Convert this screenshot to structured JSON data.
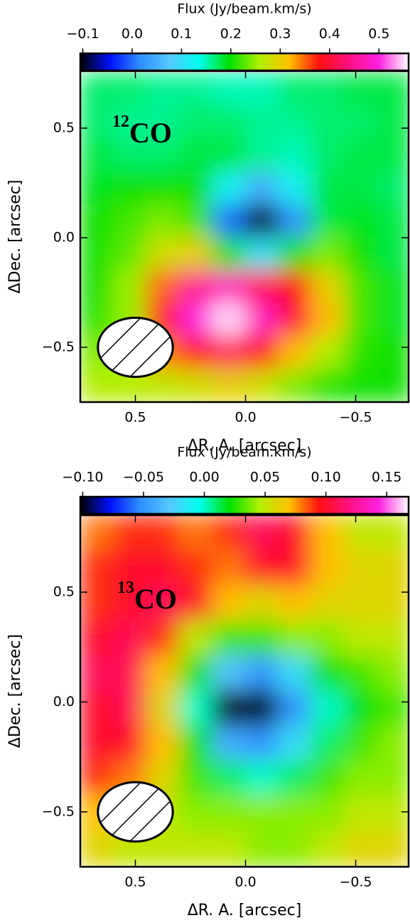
{
  "chart_data": [
    {
      "type": "heatmap",
      "colorbar_label": "Flux (Jy/beam.km/s)",
      "xlabel": "ΔR. A. [arcsec]",
      "ylabel": "ΔDec. [arcsec]",
      "annotation": {
        "mass": "12",
        "molecule": "CO"
      },
      "x": [
        0.675,
        0.525,
        0.375,
        0.225,
        0.075,
        -0.075,
        -0.225,
        -0.375,
        -0.525,
        -0.675
      ],
      "y": [
        0.675,
        0.525,
        0.375,
        0.225,
        0.075,
        -0.075,
        -0.225,
        -0.375,
        -0.525,
        -0.675
      ],
      "values": [
        [
          0.17,
          0.17,
          0.16,
          0.16,
          0.15,
          0.15,
          0.17,
          0.17,
          0.18,
          0.18
        ],
        [
          0.17,
          0.16,
          0.16,
          0.17,
          0.17,
          0.16,
          0.16,
          0.17,
          0.17,
          0.18
        ],
        [
          0.18,
          0.17,
          0.17,
          0.18,
          0.18,
          0.16,
          0.15,
          0.17,
          0.18,
          0.18
        ],
        [
          0.19,
          0.2,
          0.2,
          0.2,
          0.12,
          0.05,
          0.12,
          0.18,
          0.18,
          0.17
        ],
        [
          0.2,
          0.22,
          0.24,
          0.22,
          0.0,
          -0.1,
          0.02,
          0.18,
          0.19,
          0.18
        ],
        [
          0.2,
          0.23,
          0.28,
          0.3,
          0.2,
          0.1,
          0.2,
          0.24,
          0.2,
          0.18
        ],
        [
          0.2,
          0.25,
          0.35,
          0.45,
          0.48,
          0.42,
          0.38,
          0.3,
          0.22,
          0.19
        ],
        [
          0.21,
          0.25,
          0.38,
          0.5,
          0.55,
          0.48,
          0.4,
          0.32,
          0.22,
          0.19
        ],
        [
          0.24,
          0.26,
          0.34,
          0.38,
          0.42,
          0.38,
          0.32,
          0.26,
          0.21,
          0.2
        ],
        [
          0.26,
          0.26,
          0.27,
          0.28,
          0.3,
          0.28,
          0.24,
          0.21,
          0.2,
          0.2
        ]
      ],
      "clim": [
        -0.105,
        0.56
      ],
      "cticks": [
        {
          "value": -0.1,
          "label": "−0.1"
        },
        {
          "value": 0,
          "label": "0.0"
        },
        0.1,
        0.2,
        0.3,
        0.4,
        0.5
      ],
      "xlim": [
        0.75,
        -0.74
      ],
      "ylim": [
        -0.75,
        0.76
      ],
      "xticks": [
        0.5,
        {
          "value": 0,
          "label": "0.0"
        },
        {
          "value": -0.5,
          "label": "−0.5"
        }
      ],
      "yticks": [
        0.5,
        {
          "value": 0,
          "label": "0.0"
        },
        {
          "value": -0.5,
          "label": "−0.5"
        }
      ],
      "colormap": [
        "#000000",
        "#0010ff",
        "#2f8fff",
        "#55c8ff",
        "#00ffee",
        "#00e000",
        "#b0f000",
        "#ffc000",
        "#ff1010",
        "#ff1080",
        "#ff20e0",
        "#ffffff"
      ],
      "beam": {
        "x": 0.5,
        "y": -0.5,
        "width": 0.34,
        "height": 0.27
      }
    },
    {
      "type": "heatmap",
      "colorbar_label": "Flux (Jy/beam.km/s)",
      "xlabel": "ΔR. A. [arcsec]",
      "ylabel": "ΔDec. [arcsec]",
      "annotation": {
        "mass": "13",
        "molecule": "CO"
      },
      "x": [
        0.675,
        0.525,
        0.375,
        0.225,
        0.075,
        -0.075,
        -0.225,
        -0.375,
        -0.525,
        -0.675
      ],
      "y": [
        0.77,
        0.61,
        0.45,
        0.29,
        0.13,
        -0.03,
        -0.19,
        -0.35,
        -0.51,
        -0.67
      ],
      "values": [
        [
          0.08,
          0.09,
          0.09,
          0.08,
          0.09,
          0.11,
          0.1,
          0.07,
          0.05,
          0.05
        ],
        [
          0.09,
          0.1,
          0.1,
          0.09,
          0.08,
          0.1,
          0.1,
          0.07,
          0.06,
          0.06
        ],
        [
          0.09,
          0.1,
          0.11,
          0.1,
          0.07,
          0.06,
          0.07,
          0.06,
          0.06,
          0.06
        ],
        [
          0.1,
          0.11,
          0.09,
          0.05,
          0.03,
          0.03,
          0.04,
          0.04,
          0.05,
          0.05
        ],
        [
          0.11,
          0.11,
          0.07,
          0.02,
          -0.03,
          -0.05,
          -0.02,
          0.02,
          0.03,
          0.04
        ],
        [
          0.1,
          0.11,
          0.06,
          0.0,
          -0.1,
          -0.11,
          -0.05,
          0.0,
          0.02,
          0.03
        ],
        [
          0.1,
          0.1,
          0.07,
          0.02,
          -0.04,
          -0.05,
          -0.02,
          0.01,
          0.03,
          0.04
        ],
        [
          0.09,
          0.08,
          0.06,
          0.03,
          0.01,
          0.0,
          0.01,
          0.03,
          0.04,
          0.04
        ],
        [
          0.07,
          0.06,
          0.05,
          0.04,
          0.04,
          0.04,
          0.04,
          0.04,
          0.05,
          0.05
        ],
        [
          0.06,
          0.05,
          0.05,
          0.05,
          0.05,
          0.04,
          0.04,
          0.05,
          0.06,
          0.06
        ]
      ],
      "clim": [
        -0.102,
        0.168
      ],
      "cticks": [
        {
          "value": -0.1,
          "label": "−0.10"
        },
        {
          "value": -0.05,
          "label": "−0.05"
        },
        {
          "value": 0,
          "label": "0.00"
        },
        {
          "value": 0.05,
          "label": "0.05"
        },
        {
          "value": 0.1,
          "label": "0.10"
        },
        {
          "value": 0.15,
          "label": "0.15"
        }
      ],
      "xlim": [
        0.75,
        -0.74
      ],
      "ylim": [
        -0.75,
        0.85
      ],
      "xticks": [
        0.5,
        {
          "value": 0,
          "label": "0.0"
        },
        {
          "value": -0.5,
          "label": "−0.5"
        }
      ],
      "yticks": [
        0.5,
        {
          "value": 0,
          "label": "0.0"
        },
        {
          "value": -0.5,
          "label": "−0.5"
        }
      ],
      "colormap": [
        "#000000",
        "#0010ff",
        "#2f8fff",
        "#55c8ff",
        "#00ffee",
        "#00e000",
        "#b0f000",
        "#ffc000",
        "#ff1010",
        "#ff1080",
        "#ff20e0",
        "#ffffff"
      ],
      "beam": {
        "x": 0.5,
        "y": -0.5,
        "width": 0.34,
        "height": 0.27
      }
    }
  ]
}
